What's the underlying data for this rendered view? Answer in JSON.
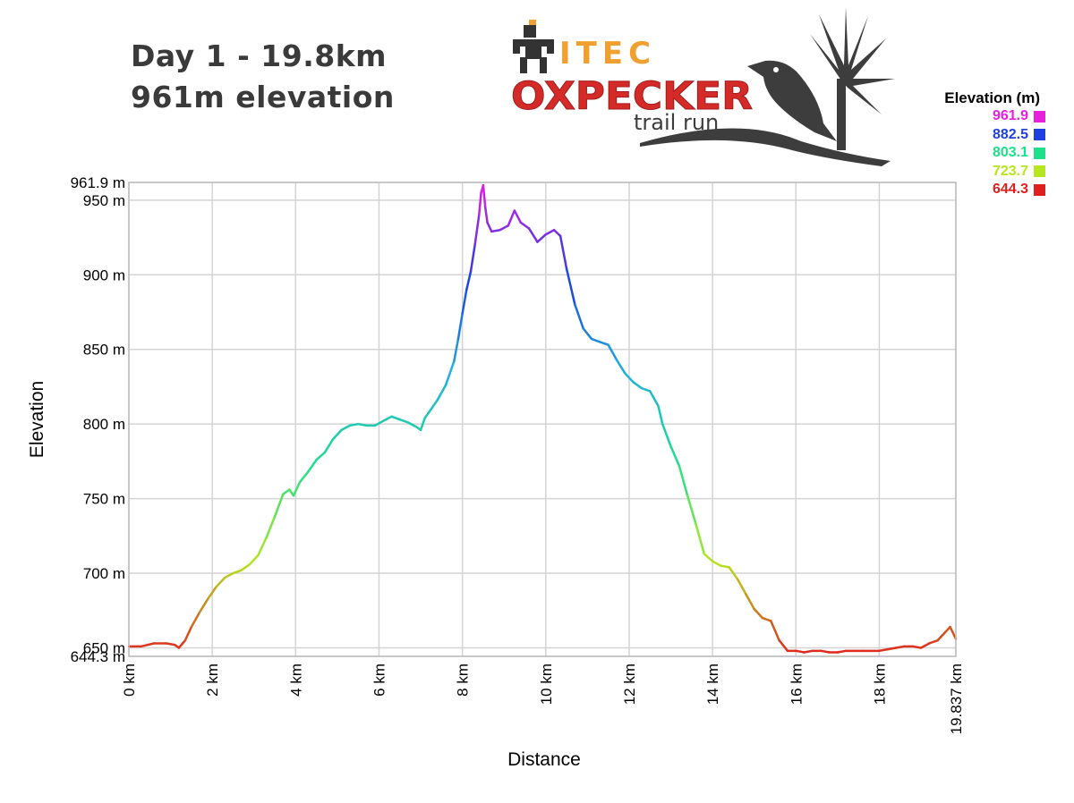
{
  "header": {
    "line1": "Day 1 - 19.8km",
    "line2": "961m elevation"
  },
  "logo": {
    "sponsor": "ITEC",
    "name": "OXPECKER",
    "tagline": "trail run",
    "icon": "oxpecker-bird-and-palm-icon",
    "colors": {
      "sponsor": "#f0a030",
      "name": "#d42a28",
      "tagline": "#3d3d3d"
    }
  },
  "legend": {
    "title": "Elevation (m)",
    "items": [
      {
        "value": "961.9",
        "color": "#e91fe0"
      },
      {
        "value": "882.5",
        "color": "#1f3fe0"
      },
      {
        "value": "803.1",
        "color": "#1fe08a"
      },
      {
        "value": "723.7",
        "color": "#b6e61f"
      },
      {
        "value": "644.3",
        "color": "#e0201f"
      }
    ]
  },
  "chart_data": {
    "type": "line",
    "xlabel": "Distance",
    "ylabel": "Elevation",
    "xlim": [
      0,
      19.837
    ],
    "ylim": [
      644.3,
      961.9
    ],
    "x_ticks": [
      {
        "value": 0,
        "label": "0 km"
      },
      {
        "value": 2,
        "label": "2 km"
      },
      {
        "value": 4,
        "label": "4 km"
      },
      {
        "value": 6,
        "label": "6 km"
      },
      {
        "value": 8,
        "label": "8 km"
      },
      {
        "value": 10,
        "label": "10 km"
      },
      {
        "value": 12,
        "label": "12 km"
      },
      {
        "value": 14,
        "label": "14 km"
      },
      {
        "value": 16,
        "label": "16 km"
      },
      {
        "value": 18,
        "label": "18 km"
      },
      {
        "value": 19.837,
        "label": "19.837 km"
      }
    ],
    "y_ticks": [
      {
        "value": 644.3,
        "label": "644.3 m"
      },
      {
        "value": 650,
        "label": "650 m"
      },
      {
        "value": 700,
        "label": "700 m"
      },
      {
        "value": 750,
        "label": "750 m"
      },
      {
        "value": 800,
        "label": "800 m"
      },
      {
        "value": 850,
        "label": "850 m"
      },
      {
        "value": 900,
        "label": "900 m"
      },
      {
        "value": 950,
        "label": "950 m"
      },
      {
        "value": 961.9,
        "label": "961.9 m"
      }
    ],
    "grid": true,
    "color_scale": [
      "#e0201f",
      "#b6e61f",
      "#1fe08a",
      "#1fb0e0",
      "#1f3fe0",
      "#e91fe0"
    ],
    "series": [
      {
        "x": [
          0,
          0.3,
          0.6,
          0.9,
          1.1,
          1.2,
          1.35,
          1.5,
          1.7,
          1.9,
          2.1,
          2.3,
          2.5,
          2.7,
          2.9,
          3.1,
          3.3,
          3.5,
          3.7,
          3.85,
          3.95,
          4.1,
          4.3,
          4.5,
          4.7,
          4.9,
          5.1,
          5.3,
          5.5,
          5.7,
          5.9,
          6.1,
          6.3,
          6.5,
          6.7,
          6.9,
          7.0,
          7.1,
          7.2,
          7.4,
          7.6,
          7.8,
          7.9,
          8.0,
          8.1,
          8.2,
          8.3,
          8.4,
          8.45,
          8.5,
          8.55,
          8.6,
          8.7,
          8.9,
          9.1,
          9.25,
          9.4,
          9.6,
          9.8,
          10.0,
          10.2,
          10.35,
          10.5,
          10.7,
          10.9,
          11.1,
          11.3,
          11.5,
          11.7,
          11.9,
          12.1,
          12.3,
          12.5,
          12.7,
          12.8,
          13.0,
          13.2,
          13.4,
          13.6,
          13.8,
          14.0,
          14.2,
          14.4,
          14.6,
          14.8,
          15.0,
          15.2,
          15.4,
          15.6,
          15.8,
          16.0,
          16.2,
          16.4,
          16.6,
          16.8,
          17.0,
          17.2,
          17.4,
          17.6,
          17.8,
          18.0,
          18.2,
          18.4,
          18.6,
          18.8,
          19.0,
          19.2,
          19.4,
          19.6,
          19.7,
          19.837
        ],
        "y": [
          651,
          651,
          653,
          653,
          652,
          650,
          655,
          664,
          674,
          683,
          691,
          697,
          700,
          702,
          706,
          712,
          724,
          738,
          753,
          756,
          752,
          761,
          768,
          776,
          781,
          790,
          796,
          799,
          800,
          799,
          799,
          802,
          805,
          803,
          801,
          798,
          796,
          804,
          808,
          816,
          826,
          842,
          857,
          874,
          890,
          902,
          920,
          940,
          955,
          960,
          945,
          935,
          929,
          930,
          933,
          943,
          935,
          931,
          922,
          927,
          930,
          926,
          904,
          880,
          864,
          857,
          855,
          853,
          843,
          834,
          828,
          824,
          822,
          812,
          800,
          785,
          772,
          752,
          733,
          713,
          708,
          705,
          704,
          696,
          686,
          676,
          670,
          668,
          655,
          648,
          648,
          647,
          648,
          648,
          647,
          647,
          648,
          648,
          648,
          648,
          648,
          649,
          650,
          651,
          651,
          650,
          653,
          655,
          661,
          664,
          656
        ]
      }
    ]
  }
}
